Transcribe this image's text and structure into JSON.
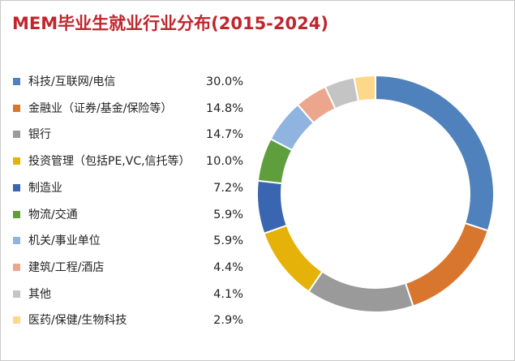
{
  "chart_data": {
    "type": "pie",
    "variant": "donut",
    "title": "MEM毕业生就业行业分布(2015-2024)",
    "unit": "%",
    "legend_position": "left",
    "categories": [
      "科技/互联网/电信",
      "金融业（证券/基金/保险等）",
      "银行",
      "投资管理（包括PE,VC,信托等）",
      "制造业",
      "物流/交通",
      "机关/事业单位",
      "建筑/工程/酒店",
      "其他",
      "医药/保健/生物科技"
    ],
    "values": [
      30.0,
      14.8,
      14.7,
      10.0,
      7.2,
      5.9,
      5.9,
      4.4,
      4.1,
      2.9
    ],
    "value_labels": [
      "30.0%",
      "14.8%",
      "14.7%",
      "10.0%",
      "7.2%",
      "5.9%",
      "5.9%",
      "4.4%",
      "4.1%",
      "2.9%"
    ],
    "colors": [
      "#4f81bd",
      "#d9762e",
      "#9a9a9a",
      "#e5b20a",
      "#3a65b0",
      "#5e9e3c",
      "#8fb4e0",
      "#eda68e",
      "#c4c4c4",
      "#fdd88b"
    ]
  }
}
